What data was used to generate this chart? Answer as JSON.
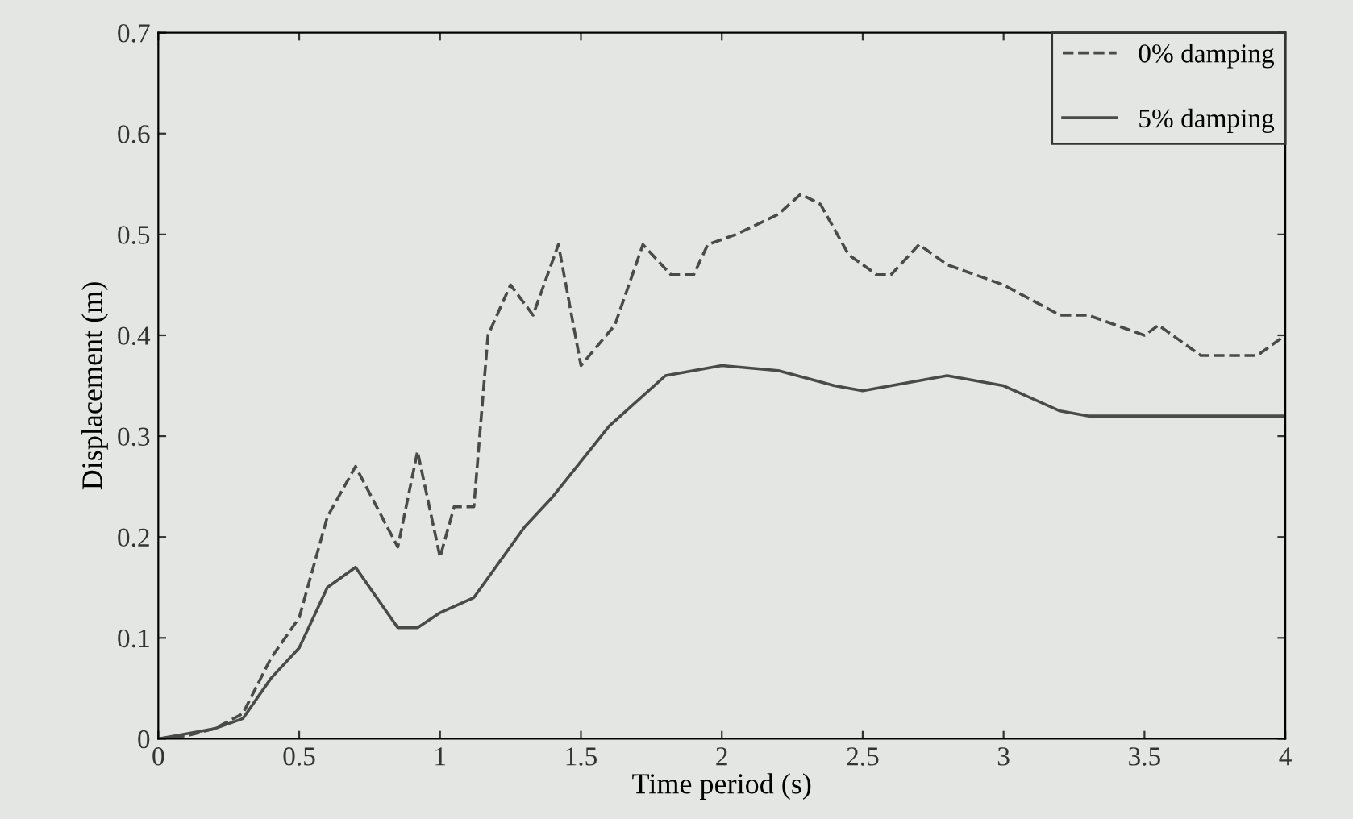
{
  "chart_data": {
    "type": "line",
    "xlabel": "Time period (s)",
    "ylabel": "Displacement (m)",
    "xlim": [
      0,
      4
    ],
    "ylim": [
      0,
      0.7
    ],
    "xticks": [
      0,
      0.5,
      1,
      1.5,
      2,
      2.5,
      3,
      3.5,
      4
    ],
    "yticks": [
      0,
      0.1,
      0.2,
      0.3,
      0.4,
      0.5,
      0.6,
      0.7
    ],
    "grid": false,
    "legend": "top right",
    "series": [
      {
        "name": "0% damping",
        "color": "#4a4a4a",
        "line_style": "dashed",
        "x": [
          0,
          0.1,
          0.2,
          0.3,
          0.4,
          0.5,
          0.6,
          0.7,
          0.85,
          0.92,
          1.0,
          1.05,
          1.12,
          1.17,
          1.25,
          1.33,
          1.42,
          1.5,
          1.62,
          1.72,
          1.82,
          1.9,
          1.95,
          2.05,
          2.2,
          2.28,
          2.35,
          2.45,
          2.55,
          2.6,
          2.7,
          2.8,
          3.0,
          3.2,
          3.3,
          3.5,
          3.55,
          3.7,
          3.9,
          4.0
        ],
        "values": [
          0,
          0.003,
          0.01,
          0.025,
          0.08,
          0.12,
          0.22,
          0.27,
          0.19,
          0.285,
          0.18,
          0.23,
          0.23,
          0.4,
          0.45,
          0.42,
          0.49,
          0.37,
          0.41,
          0.49,
          0.46,
          0.46,
          0.49,
          0.5,
          0.52,
          0.54,
          0.53,
          0.48,
          0.46,
          0.46,
          0.49,
          0.47,
          0.45,
          0.42,
          0.42,
          0.4,
          0.41,
          0.38,
          0.38,
          0.4
        ]
      },
      {
        "name": "5% damping",
        "color": "#4a4a4a",
        "line_style": "solid",
        "x": [
          0,
          0.2,
          0.3,
          0.4,
          0.5,
          0.6,
          0.7,
          0.85,
          0.92,
          1.0,
          1.12,
          1.3,
          1.4,
          1.6,
          1.8,
          2.0,
          2.2,
          2.4,
          2.5,
          2.6,
          2.8,
          3.0,
          3.2,
          3.3,
          4.0
        ],
        "values": [
          0,
          0.01,
          0.02,
          0.06,
          0.09,
          0.15,
          0.17,
          0.11,
          0.11,
          0.125,
          0.14,
          0.21,
          0.24,
          0.31,
          0.36,
          0.37,
          0.365,
          0.35,
          0.345,
          0.35,
          0.36,
          0.35,
          0.325,
          0.32,
          0.32
        ]
      }
    ]
  }
}
